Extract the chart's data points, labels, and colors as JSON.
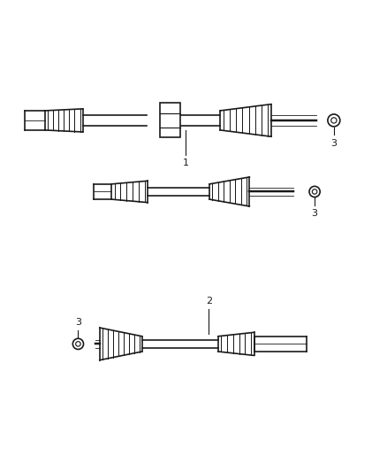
{
  "background_color": "#ffffff",
  "line_color": "#1a1a1a",
  "line_width": 1.2,
  "fig_width": 4.38,
  "fig_height": 5.33,
  "dpi": 100
}
